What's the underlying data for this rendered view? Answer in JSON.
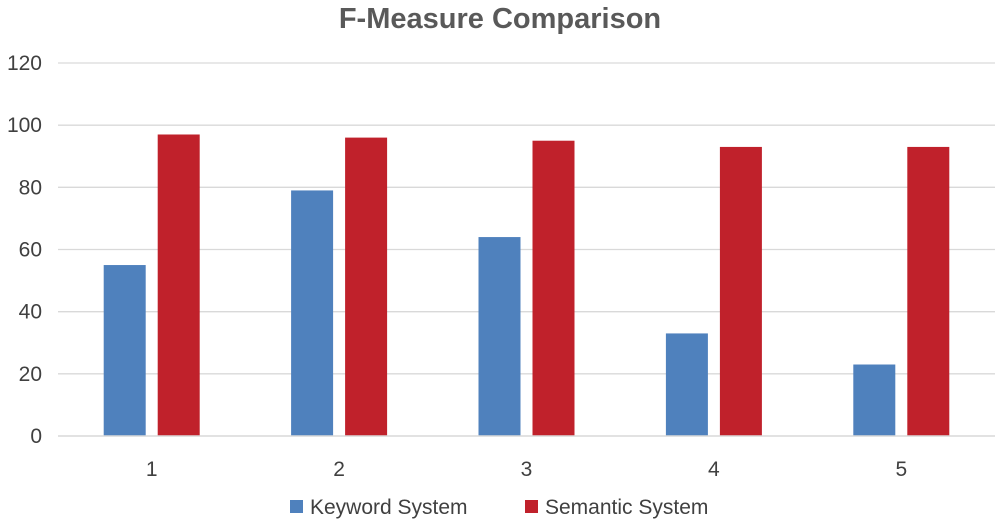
{
  "chart_data": {
    "type": "bar",
    "title": "F-Measure Comparison",
    "xlabel": "",
    "ylabel": "",
    "categories": [
      "1",
      "2",
      "3",
      "4",
      "5"
    ],
    "series": [
      {
        "name": "Keyword System",
        "color": "#4f81bd",
        "values": [
          55,
          79,
          64,
          33,
          23
        ]
      },
      {
        "name": "Semantic System",
        "color": "#c0212b",
        "values": [
          97,
          96,
          95,
          93,
          93
        ]
      }
    ],
    "ylim": [
      0,
      120
    ],
    "yticks": [
      0,
      20,
      40,
      60,
      80,
      100,
      120
    ],
    "grid": true,
    "legend_position": "bottom"
  }
}
